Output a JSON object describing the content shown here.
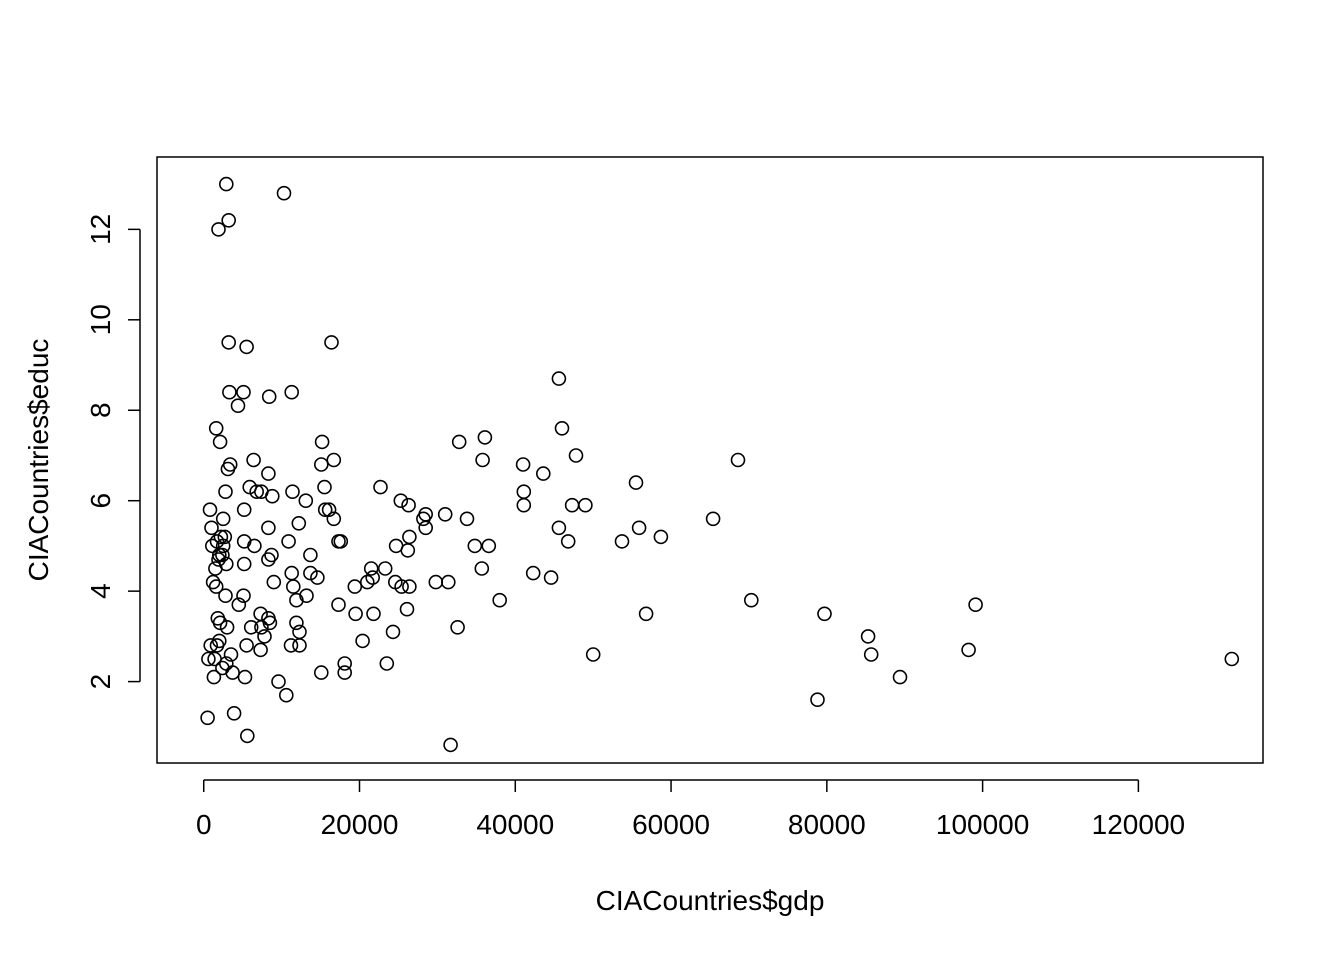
{
  "chart_data": {
    "type": "scatter",
    "title": "",
    "xlabel": "CIACountries$gdp",
    "ylabel": "CIACountries$educ",
    "xlim": [
      -6000,
      136000
    ],
    "ylim": [
      0.2,
      13.6
    ],
    "grid": false,
    "legend": "none",
    "point_style": "open-circle",
    "colors": {
      "background": "#ffffff",
      "point_stroke": "#000000",
      "axis": "#000000"
    },
    "x_ticks": [
      {
        "value": 0,
        "label": "0"
      },
      {
        "value": 20000,
        "label": "20000"
      },
      {
        "value": 40000,
        "label": "40000"
      },
      {
        "value": 60000,
        "label": "60000"
      },
      {
        "value": 80000,
        "label": "80000"
      },
      {
        "value": 100000,
        "label": "100000"
      },
      {
        "value": 120000,
        "label": "120000"
      }
    ],
    "y_ticks": [
      {
        "value": 2,
        "label": "2"
      },
      {
        "value": 4,
        "label": "4"
      },
      {
        "value": 6,
        "label": "6"
      },
      {
        "value": 8,
        "label": "8"
      },
      {
        "value": 10,
        "label": "10"
      },
      {
        "value": 12,
        "label": "12"
      }
    ],
    "points": [
      [
        2900,
        13.0
      ],
      [
        10300,
        12.8
      ],
      [
        3200,
        12.2
      ],
      [
        1900,
        12.0
      ],
      [
        3200,
        9.5
      ],
      [
        5500,
        9.4
      ],
      [
        16400,
        9.5
      ],
      [
        3300,
        8.4
      ],
      [
        5100,
        8.4
      ],
      [
        11300,
        8.4
      ],
      [
        8400,
        8.3
      ],
      [
        4400,
        8.1
      ],
      [
        1600,
        7.6
      ],
      [
        2100,
        7.3
      ],
      [
        15200,
        7.3
      ],
      [
        6400,
        6.9
      ],
      [
        16700,
        6.9
      ],
      [
        3400,
        6.8
      ],
      [
        3100,
        6.7
      ],
      [
        15100,
        6.8
      ],
      [
        8300,
        6.6
      ],
      [
        22700,
        6.3
      ],
      [
        5900,
        6.3
      ],
      [
        15500,
        6.3
      ],
      [
        6800,
        6.2
      ],
      [
        7400,
        6.2
      ],
      [
        11400,
        6.2
      ],
      [
        2800,
        6.2
      ],
      [
        8800,
        6.1
      ],
      [
        13100,
        6.0
      ],
      [
        800,
        5.8
      ],
      [
        5200,
        5.8
      ],
      [
        15600,
        5.8
      ],
      [
        16100,
        5.8
      ],
      [
        2500,
        5.6
      ],
      [
        16700,
        5.6
      ],
      [
        12200,
        5.5
      ],
      [
        1000,
        5.4
      ],
      [
        8300,
        5.4
      ],
      [
        2200,
        5.2
      ],
      [
        2700,
        5.2
      ],
      [
        10900,
        5.1
      ],
      [
        5200,
        5.1
      ],
      [
        17300,
        5.1
      ],
      [
        17600,
        5.1
      ],
      [
        1700,
        5.1
      ],
      [
        1100,
        5.0
      ],
      [
        6500,
        5.0
      ],
      [
        2500,
        5.0
      ],
      [
        2400,
        4.8
      ],
      [
        2000,
        4.8
      ],
      [
        8300,
        4.7
      ],
      [
        8700,
        4.8
      ],
      [
        13700,
        4.8
      ],
      [
        1900,
        4.7
      ],
      [
        2900,
        4.6
      ],
      [
        5200,
        4.6
      ],
      [
        1500,
        4.5
      ],
      [
        11300,
        4.4
      ],
      [
        13700,
        4.4
      ],
      [
        14600,
        4.3
      ],
      [
        9000,
        4.2
      ],
      [
        1200,
        4.2
      ],
      [
        1600,
        4.1
      ],
      [
        11500,
        4.1
      ],
      [
        11900,
        3.8
      ],
      [
        13200,
        3.9
      ],
      [
        2800,
        3.9
      ],
      [
        5100,
        3.9
      ],
      [
        4500,
        3.7
      ],
      [
        7300,
        3.5
      ],
      [
        8300,
        3.4
      ],
      [
        1800,
        3.4
      ],
      [
        2100,
        3.3
      ],
      [
        8500,
        3.3
      ],
      [
        6100,
        3.2
      ],
      [
        7400,
        3.2
      ],
      [
        11900,
        3.3
      ],
      [
        3000,
        3.2
      ],
      [
        7800,
        3.0
      ],
      [
        12300,
        3.1
      ],
      [
        2000,
        2.9
      ],
      [
        1700,
        2.8
      ],
      [
        900,
        2.8
      ],
      [
        5500,
        2.8
      ],
      [
        7300,
        2.7
      ],
      [
        11200,
        2.8
      ],
      [
        12300,
        2.8
      ],
      [
        600,
        2.5
      ],
      [
        1400,
        2.5
      ],
      [
        3500,
        2.6
      ],
      [
        2400,
        2.3
      ],
      [
        2900,
        2.4
      ],
      [
        3700,
        2.2
      ],
      [
        5300,
        2.1
      ],
      [
        1300,
        2.1
      ],
      [
        9600,
        2.0
      ],
      [
        10600,
        1.7
      ],
      [
        500,
        1.2
      ],
      [
        3900,
        1.3
      ],
      [
        5600,
        0.8
      ],
      [
        17300,
        3.7
      ],
      [
        19400,
        4.1
      ],
      [
        19500,
        3.5
      ],
      [
        20400,
        2.9
      ],
      [
        21000,
        4.2
      ],
      [
        21500,
        4.5
      ],
      [
        21700,
        4.3
      ],
      [
        21800,
        3.5
      ],
      [
        23300,
        4.5
      ],
      [
        23500,
        2.4
      ],
      [
        24300,
        3.1
      ],
      [
        24600,
        4.2
      ],
      [
        24700,
        5.0
      ],
      [
        25300,
        6.0
      ],
      [
        25400,
        4.1
      ],
      [
        26100,
        3.6
      ],
      [
        26200,
        4.9
      ],
      [
        26400,
        4.1
      ],
      [
        26400,
        5.2
      ],
      [
        26300,
        5.9
      ],
      [
        28200,
        5.6
      ],
      [
        28500,
        5.7
      ],
      [
        28500,
        5.4
      ],
      [
        29800,
        4.2
      ],
      [
        31000,
        5.7
      ],
      [
        31400,
        4.2
      ],
      [
        32600,
        3.2
      ],
      [
        32800,
        7.3
      ],
      [
        33800,
        5.6
      ],
      [
        34800,
        5.0
      ],
      [
        35700,
        4.5
      ],
      [
        35800,
        6.9
      ],
      [
        36100,
        7.4
      ],
      [
        36600,
        5.0
      ],
      [
        38000,
        3.8
      ],
      [
        41000,
        6.8
      ],
      [
        41100,
        6.2
      ],
      [
        41100,
        5.9
      ],
      [
        42300,
        4.4
      ],
      [
        43600,
        6.6
      ],
      [
        44600,
        4.3
      ],
      [
        45600,
        8.7
      ],
      [
        45600,
        5.4
      ],
      [
        46000,
        7.6
      ],
      [
        46800,
        5.1
      ],
      [
        47300,
        5.9
      ],
      [
        47800,
        7.0
      ],
      [
        49000,
        5.9
      ],
      [
        50000,
        2.6
      ],
      [
        53700,
        5.1
      ],
      [
        55500,
        6.4
      ],
      [
        55900,
        5.4
      ],
      [
        56800,
        3.5
      ],
      [
        58700,
        5.2
      ],
      [
        65400,
        5.6
      ],
      [
        68600,
        6.9
      ],
      [
        70300,
        3.8
      ],
      [
        78800,
        1.6
      ],
      [
        79700,
        3.5
      ],
      [
        85300,
        3.0
      ],
      [
        85700,
        2.6
      ],
      [
        89400,
        2.1
      ],
      [
        98200,
        2.7
      ],
      [
        99100,
        3.7
      ],
      [
        132000,
        2.5
      ],
      [
        31700,
        0.6
      ],
      [
        15100,
        2.2
      ],
      [
        18100,
        2.2
      ],
      [
        18100,
        2.4
      ]
    ]
  }
}
